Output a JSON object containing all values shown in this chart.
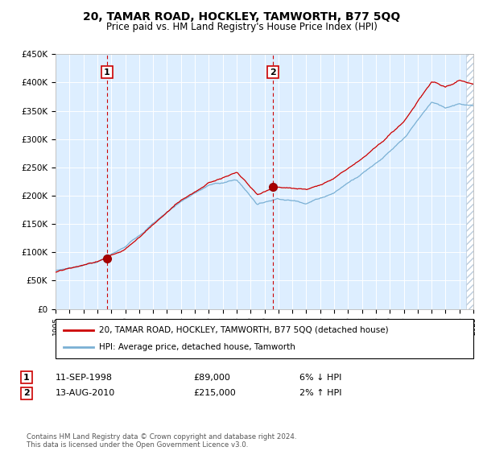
{
  "title": "20, TAMAR ROAD, HOCKLEY, TAMWORTH, B77 5QQ",
  "subtitle": "Price paid vs. HM Land Registry's House Price Index (HPI)",
  "sale1_date": 1998.7,
  "sale1_price": 89000,
  "sale1_label": "11-SEP-1998",
  "sale1_amount": "£89,000",
  "sale1_hpi": "6% ↓ HPI",
  "sale2_date": 2010.6,
  "sale2_price": 215000,
  "sale2_label": "13-AUG-2010",
  "sale2_amount": "£215,000",
  "sale2_hpi": "2% ↑ HPI",
  "xmin": 1995,
  "xmax": 2025,
  "ymin": 0,
  "ymax": 450000,
  "legend_line1": "20, TAMAR ROAD, HOCKLEY, TAMWORTH, B77 5QQ (detached house)",
  "legend_line2": "HPI: Average price, detached house, Tamworth",
  "footer": "Contains HM Land Registry data © Crown copyright and database right 2024.\nThis data is licensed under the Open Government Licence v3.0.",
  "line_color_red": "#cc0000",
  "line_color_blue": "#7ab0d4",
  "bg_color": "#ddeeff",
  "hatch_color": "#aabbcc"
}
